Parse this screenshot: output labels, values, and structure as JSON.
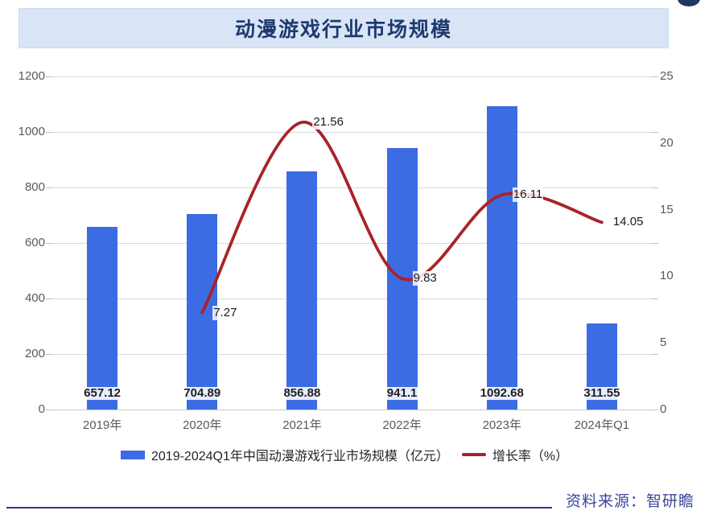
{
  "title": "动漫游戏行业市场规模",
  "legend": {
    "bar_label": "2019-2024Q1年中国动漫游戏行业市场规模（亿元）",
    "line_label": "增长率（%）"
  },
  "source": {
    "label": "资料来源：智研瞻"
  },
  "colors": {
    "bar": "#3c6ce3",
    "line": "#a8232a",
    "banner_bg": "#d9e5f6",
    "banner_text": "#1e3a6e",
    "axis_text": "#595959",
    "source_text": "#3a459c",
    "gridline": "#d8d8d8"
  },
  "chart_data": {
    "type": "bar",
    "title": "动漫游戏行业市场规模",
    "categories": [
      "2019年",
      "2020年",
      "2021年",
      "2022年",
      "2023年",
      "2024年Q1"
    ],
    "series": [
      {
        "name": "2019-2024Q1年中国动漫游戏行业市场规模（亿元）",
        "type": "bar",
        "axis": "left",
        "color": "#3c6ce3",
        "values": [
          657.12,
          704.89,
          856.88,
          941.1,
          1092.68,
          311.55
        ],
        "labels": [
          "657.12",
          "704.89",
          "856.88",
          "941.1",
          "1092.68",
          "311.55"
        ]
      },
      {
        "name": "增长率（%）",
        "type": "line",
        "axis": "right",
        "color": "#a8232a",
        "values": [
          null,
          7.27,
          21.56,
          9.83,
          16.11,
          14.05
        ],
        "labels": [
          null,
          "7.27",
          "21.56",
          "9.83",
          "16.11",
          "14.05"
        ]
      }
    ],
    "left_axis": {
      "min": 0,
      "max": 1200,
      "step": 200,
      "ticks": [
        "0",
        "200",
        "400",
        "600",
        "800",
        "1000",
        "1200"
      ]
    },
    "right_axis": {
      "min": 0,
      "max": 25,
      "step": 5,
      "ticks": [
        "0",
        "5",
        "10",
        "15",
        "20",
        "25"
      ]
    },
    "grid": true,
    "legend_position": "bottom",
    "line_style": "smooth"
  }
}
